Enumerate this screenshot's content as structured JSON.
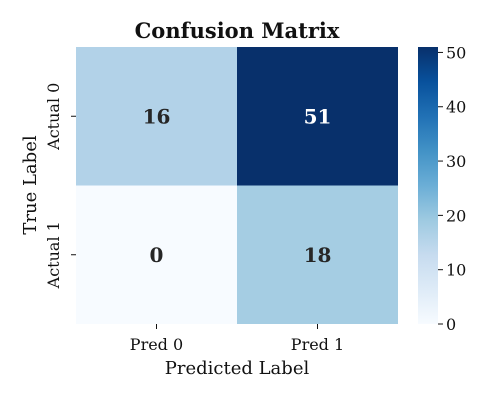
{
  "chart_data": {
    "type": "heatmap",
    "title": "Confusion Matrix",
    "xlabel": "Predicted Label",
    "ylabel": "True Label",
    "x_categories": [
      "Pred 0",
      "Pred 1"
    ],
    "y_categories": [
      "Actual 0",
      "Actual 1"
    ],
    "values": [
      [
        16,
        51
      ],
      [
        0,
        18
      ]
    ],
    "colormap": "Blues",
    "colorbar": {
      "min": 0,
      "max": 51,
      "ticks": [
        0,
        10,
        20,
        30,
        40,
        50
      ]
    },
    "grid": false
  }
}
